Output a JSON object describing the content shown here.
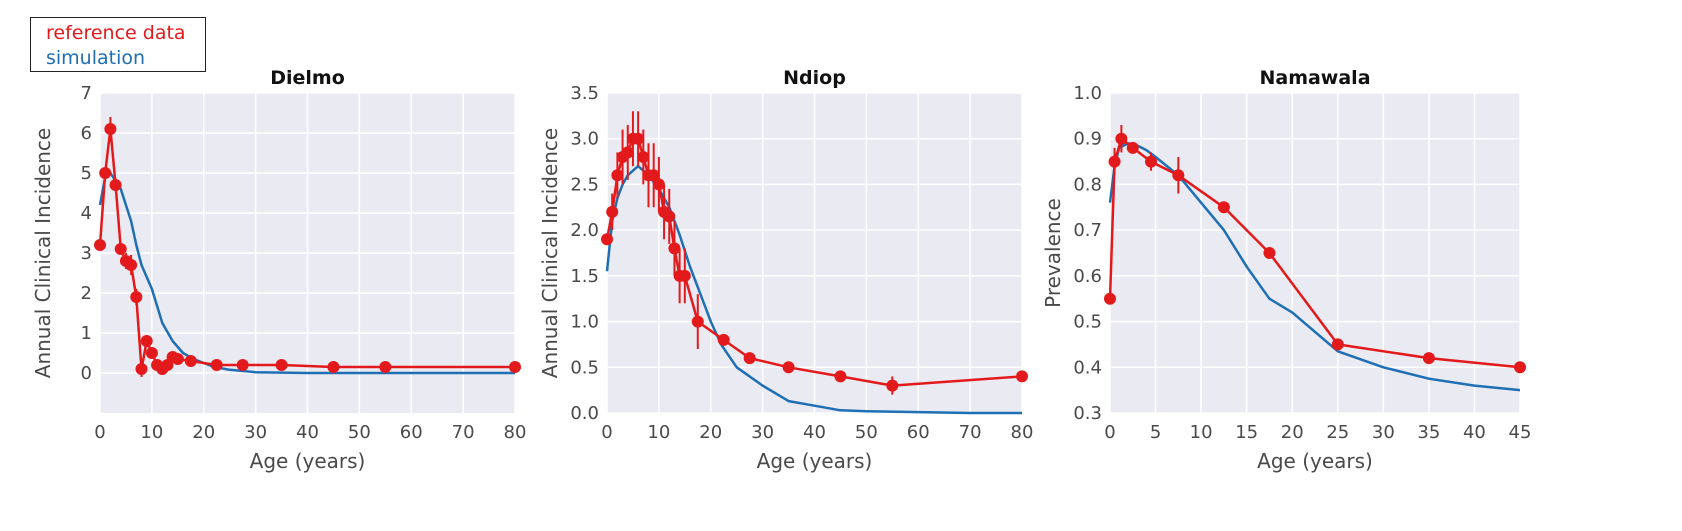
{
  "legend": {
    "entries": [
      {
        "label": "reference data",
        "color": "#e31a1c"
      },
      {
        "label": "simulation",
        "color": "#1f6fb4"
      }
    ],
    "placement": "top-left"
  },
  "style": {
    "panel_background": "#eaeaf2",
    "grid_color": "#ffffff",
    "reference_color": "#e31a1c",
    "simulation_color": "#1f6fb4"
  },
  "chart_data": [
    {
      "type": "line",
      "title": "Dielmo",
      "xlabel": "Age (years)",
      "ylabel": "Annual Clinical Incidence",
      "xlim": [
        0,
        80
      ],
      "ylim": [
        -1,
        7
      ],
      "xticks": [
        0,
        10,
        20,
        30,
        40,
        50,
        60,
        70,
        80
      ],
      "yticks": [
        0,
        1,
        2,
        3,
        4,
        5,
        6,
        7
      ],
      "grid": true,
      "series": [
        {
          "name": "reference data",
          "markers": true,
          "x": [
            0,
            1,
            2,
            3,
            4,
            5,
            6,
            7,
            8,
            9,
            10,
            11,
            12,
            13,
            14,
            15,
            17.5,
            22.5,
            27.5,
            35,
            45,
            55,
            80
          ],
          "y": [
            3.2,
            5.0,
            6.1,
            4.7,
            3.1,
            2.8,
            2.7,
            1.9,
            0.1,
            0.8,
            0.5,
            0.2,
            0.1,
            0.2,
            0.4,
            0.35,
            0.3,
            0.2,
            0.2,
            0.2,
            0.15,
            0.15,
            0.15
          ],
          "err": [
            0,
            0,
            0.3,
            0,
            0,
            0.2,
            0.25,
            0.2,
            0.2,
            0,
            0,
            0,
            0,
            0,
            0,
            0,
            0,
            0,
            0,
            0,
            0,
            0,
            0
          ]
        },
        {
          "name": "simulation",
          "markers": false,
          "x": [
            0,
            1,
            2,
            3,
            4,
            5,
            6,
            7,
            8,
            10,
            12,
            14,
            16,
            18,
            20,
            22,
            25,
            30,
            40,
            50,
            60,
            70,
            80
          ],
          "y": [
            4.2,
            4.9,
            5.0,
            4.8,
            4.6,
            4.2,
            3.8,
            3.2,
            2.7,
            2.1,
            1.25,
            0.8,
            0.5,
            0.35,
            0.25,
            0.15,
            0.08,
            0.02,
            0.0,
            0.0,
            0.0,
            0.0,
            0.0
          ]
        }
      ]
    },
    {
      "type": "line",
      "title": "Ndiop",
      "xlabel": "Age (years)",
      "ylabel": "Annual Clinical Incidence",
      "xlim": [
        0,
        80
      ],
      "ylim": [
        0,
        3.5
      ],
      "xticks": [
        0,
        10,
        20,
        30,
        40,
        50,
        60,
        70,
        80
      ],
      "yticks": [
        0.0,
        0.5,
        1.0,
        1.5,
        2.0,
        2.5,
        3.0,
        3.5
      ],
      "ytick_labels": [
        "0.0",
        "0.5",
        "1.0",
        "1.5",
        "2.0",
        "2.5",
        "3.0",
        "3.5"
      ],
      "grid": true,
      "series": [
        {
          "name": "reference data",
          "markers": true,
          "x": [
            0,
            1,
            2,
            3,
            4,
            5,
            6,
            7,
            8,
            9,
            10,
            11,
            12,
            13,
            14,
            15,
            17.5,
            22.5,
            27.5,
            35,
            45,
            55,
            80
          ],
          "y": [
            1.9,
            2.2,
            2.6,
            2.8,
            2.85,
            3.0,
            3.0,
            2.8,
            2.6,
            2.6,
            2.5,
            2.2,
            2.15,
            1.8,
            1.5,
            1.5,
            1.0,
            0.8,
            0.6,
            0.5,
            0.4,
            0.3,
            0.4
          ],
          "err": [
            0,
            0.2,
            0.25,
            0.3,
            0.3,
            0.3,
            0.3,
            0.3,
            0.35,
            0.35,
            0.3,
            0.3,
            0.3,
            0.3,
            0.3,
            0.3,
            0.3,
            0,
            0,
            0,
            0,
            0.1,
            0
          ]
        },
        {
          "name": "simulation",
          "markers": false,
          "x": [
            0,
            1,
            2,
            3,
            4,
            5,
            6,
            8,
            10,
            12,
            14,
            16,
            18,
            20,
            22,
            25,
            30,
            35,
            40,
            45,
            50,
            60,
            70,
            80
          ],
          "y": [
            1.55,
            2.1,
            2.35,
            2.5,
            2.6,
            2.65,
            2.7,
            2.6,
            2.45,
            2.25,
            1.95,
            1.6,
            1.3,
            1.0,
            0.75,
            0.5,
            0.3,
            0.13,
            0.08,
            0.03,
            0.02,
            0.01,
            0.0,
            0.0
          ]
        }
      ]
    },
    {
      "type": "line",
      "title": "Namawala",
      "xlabel": "Age (years)",
      "ylabel": "Prevalence",
      "xlim": [
        0,
        45
      ],
      "ylim": [
        0.3,
        1.0
      ],
      "xticks": [
        0,
        5,
        10,
        15,
        20,
        25,
        30,
        35,
        40,
        45
      ],
      "yticks": [
        0.3,
        0.4,
        0.5,
        0.6,
        0.7,
        0.8,
        0.9,
        1.0
      ],
      "ytick_labels": [
        "0.3",
        "0.4",
        "0.5",
        "0.6",
        "0.7",
        "0.8",
        "0.9",
        "1.0"
      ],
      "grid": true,
      "series": [
        {
          "name": "reference data",
          "markers": true,
          "x": [
            0,
            0.5,
            1.25,
            2.5,
            4.5,
            7.5,
            12.5,
            17.5,
            25,
            35,
            45
          ],
          "y": [
            0.55,
            0.85,
            0.9,
            0.88,
            0.85,
            0.82,
            0.75,
            0.65,
            0.45,
            0.42,
            0.4
          ],
          "err": [
            0,
            0.03,
            0.03,
            0.01,
            0.02,
            0.04,
            0,
            0,
            0,
            0,
            0.01
          ]
        },
        {
          "name": "simulation",
          "markers": false,
          "x": [
            0,
            0.5,
            1,
            2,
            3,
            4,
            5,
            7.5,
            10,
            12.5,
            15,
            17.5,
            20,
            25,
            30,
            35,
            40,
            45
          ],
          "y": [
            0.76,
            0.84,
            0.88,
            0.89,
            0.885,
            0.875,
            0.86,
            0.82,
            0.76,
            0.7,
            0.62,
            0.55,
            0.52,
            0.435,
            0.4,
            0.375,
            0.36,
            0.35
          ]
        }
      ]
    }
  ]
}
